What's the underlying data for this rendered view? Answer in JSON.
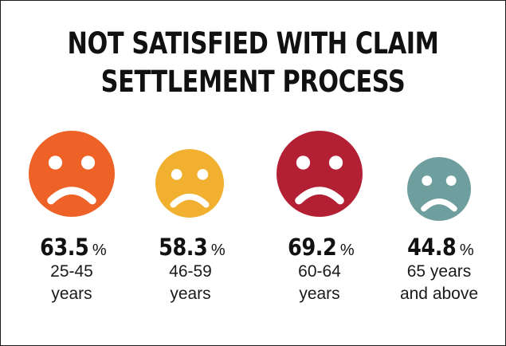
{
  "title_lines": [
    "NOT SATISFIED WITH CLAIM",
    "SETTLEMENT PROCESS"
  ],
  "chart_data": {
    "type": "pictogram",
    "title": "NOT SATISFIED WITH CLAIM SETTLEMENT PROCESS",
    "unit": "%",
    "categories": [
      "25-45 years",
      "46-59 years",
      "60-64 years",
      "65 years and above"
    ],
    "values": [
      63.5,
      58.3,
      69.2,
      44.8
    ],
    "items": [
      {
        "value_label": "63.5",
        "unit": "%",
        "label_lines": [
          "25-45",
          "years"
        ],
        "color": "#ee6127",
        "icon": "sad-face-icon"
      },
      {
        "value_label": "58.3",
        "unit": "%",
        "label_lines": [
          "46-59",
          "years"
        ],
        "color": "#f1b02f",
        "icon": "sad-face-icon"
      },
      {
        "value_label": "69.2",
        "unit": "%",
        "label_lines": [
          "60-64",
          "years"
        ],
        "color": "#b31f33",
        "icon": "sad-face-icon"
      },
      {
        "value_label": "44.8",
        "unit": "%",
        "label_lines": [
          "65 years",
          "and above"
        ],
        "color": "#6f9e9e",
        "icon": "sad-face-icon"
      }
    ]
  }
}
